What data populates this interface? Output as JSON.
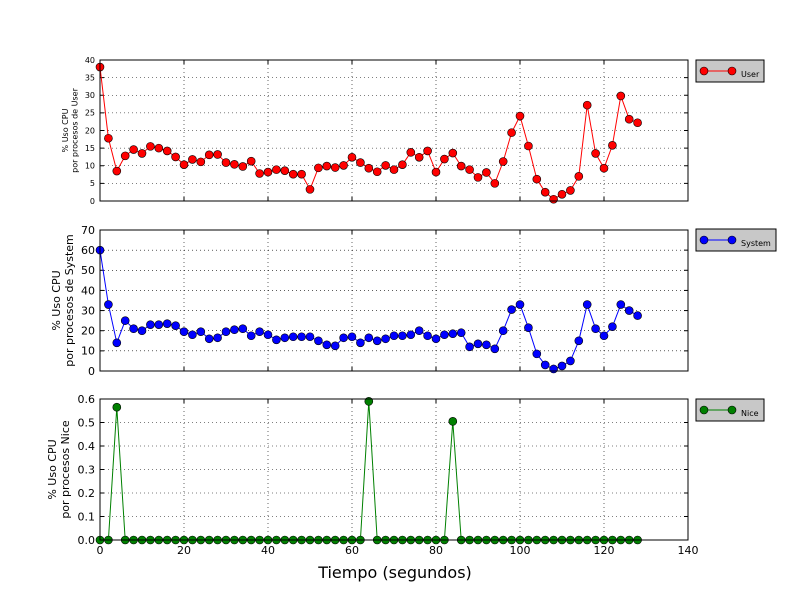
{
  "colors": {
    "user": "#ff0000",
    "system": "#0000ff",
    "nice": "#008000",
    "legend_bg": "#c8c8c8"
  },
  "chart_data": [
    {
      "type": "line",
      "ylabel": [
        "% Uso CPU",
        "por procesos de User"
      ],
      "xlim": [
        0,
        140
      ],
      "ylim": [
        0,
        40
      ],
      "yticks": [
        "0",
        "5",
        "10",
        "15",
        "20",
        "25",
        "30",
        "35",
        "40"
      ],
      "grid": true,
      "legend": "right",
      "series": [
        {
          "name": "User",
          "x": [
            0,
            2,
            4,
            6,
            8,
            10,
            12,
            14,
            16,
            18,
            20,
            22,
            24,
            26,
            28,
            30,
            32,
            34,
            36,
            38,
            40,
            42,
            44,
            46,
            48,
            50,
            52,
            54,
            56,
            58,
            60,
            62,
            64,
            66,
            68,
            70,
            72,
            74,
            76,
            78,
            80,
            82,
            84,
            86,
            88,
            90,
            92,
            94,
            96,
            98,
            100,
            102,
            104,
            106,
            108,
            110,
            112,
            114,
            116,
            118,
            120,
            122,
            124,
            126,
            128
          ],
          "values": [
            38,
            17.8,
            8.5,
            12.8,
            14.6,
            13.5,
            15.5,
            15,
            14.2,
            12.5,
            10.3,
            11.8,
            11.1,
            13.1,
            13.2,
            10.9,
            10.4,
            9.8,
            11.3,
            7.8,
            8.2,
            8.9,
            8.6,
            7.6,
            7.6,
            3.3,
            9.4,
            9.9,
            9.5,
            10.1,
            12.4,
            10.9,
            9.3,
            8.3,
            10.1,
            8.9,
            10.3,
            13.8,
            12.4,
            14.2,
            8.2,
            11.9,
            13.6,
            9.9,
            8.9,
            6.7,
            8.1,
            5,
            11.2,
            19.4,
            24.1,
            15.6,
            6.2,
            2.5,
            0.5,
            1.9,
            3,
            7,
            27.2,
            13.5,
            9.3,
            15.8,
            29.8,
            23.2,
            22.2
          ]
        }
      ]
    },
    {
      "type": "line",
      "ylabel": [
        "% Uso CPU",
        "por procesos de System"
      ],
      "xlim": [
        0,
        140
      ],
      "ylim": [
        0,
        70
      ],
      "yticks": [
        "0",
        "10",
        "20",
        "30",
        "40",
        "50",
        "60",
        "70"
      ],
      "grid": true,
      "legend": "right",
      "series": [
        {
          "name": "System",
          "x": [
            0,
            2,
            4,
            6,
            8,
            10,
            12,
            14,
            16,
            18,
            20,
            22,
            24,
            26,
            28,
            30,
            32,
            34,
            36,
            38,
            40,
            42,
            44,
            46,
            48,
            50,
            52,
            54,
            56,
            58,
            60,
            62,
            64,
            66,
            68,
            70,
            72,
            74,
            76,
            78,
            80,
            82,
            84,
            86,
            88,
            90,
            92,
            94,
            96,
            98,
            100,
            102,
            104,
            106,
            108,
            110,
            112,
            114,
            116,
            118,
            120,
            122,
            124,
            126,
            128
          ],
          "values": [
            60,
            33,
            14,
            25,
            21,
            20,
            23,
            23,
            23.5,
            22.5,
            19.5,
            18,
            19.5,
            16,
            16.5,
            19.5,
            20.5,
            21,
            17.5,
            19.5,
            18,
            15.5,
            16.5,
            17,
            17,
            17,
            15,
            13,
            12.5,
            16.5,
            17,
            14,
            16.5,
            15,
            16,
            17.5,
            17.5,
            18,
            20,
            17.5,
            16,
            18,
            18.5,
            19,
            12,
            13.5,
            13,
            11,
            20,
            30.5,
            33,
            21.5,
            8.5,
            3,
            1,
            2.5,
            5,
            15,
            33,
            21,
            17.5,
            22,
            33,
            30,
            27.5
          ]
        }
      ]
    },
    {
      "type": "line",
      "xlabel": "Tiempo (segundos)",
      "ylabel": [
        "% Uso CPU",
        "por procesos Nice"
      ],
      "xlim": [
        0,
        140
      ],
      "ylim": [
        0,
        0.6
      ],
      "yticks": [
        "0.0",
        "0.1",
        "0.2",
        "0.3",
        "0.4",
        "0.5",
        "0.6"
      ],
      "xticks": [
        "0",
        "20",
        "40",
        "60",
        "80",
        "100",
        "120",
        "140"
      ],
      "grid": true,
      "legend": "right",
      "series": [
        {
          "name": "Nice",
          "x": [
            0,
            2,
            4,
            6,
            8,
            10,
            12,
            14,
            16,
            18,
            20,
            22,
            24,
            26,
            28,
            30,
            32,
            34,
            36,
            38,
            40,
            42,
            44,
            46,
            48,
            50,
            52,
            54,
            56,
            58,
            60,
            62,
            64,
            66,
            68,
            70,
            72,
            74,
            76,
            78,
            80,
            82,
            84,
            86,
            88,
            90,
            92,
            94,
            96,
            98,
            100,
            102,
            104,
            106,
            108,
            110,
            112,
            114,
            116,
            118,
            120,
            122,
            124,
            126,
            128
          ],
          "values": [
            0,
            0,
            0.565,
            0,
            0,
            0,
            0,
            0,
            0,
            0,
            0,
            0,
            0,
            0,
            0,
            0,
            0,
            0,
            0,
            0,
            0,
            0,
            0,
            0,
            0,
            0,
            0,
            0,
            0,
            0,
            0,
            0,
            0.59,
            0,
            0,
            0,
            0,
            0,
            0,
            0,
            0,
            0,
            0.505,
            0,
            0,
            0,
            0,
            0,
            0,
            0,
            0,
            0,
            0,
            0,
            0,
            0,
            0,
            0,
            0,
            0,
            0,
            0,
            0,
            0,
            0
          ]
        }
      ]
    }
  ]
}
